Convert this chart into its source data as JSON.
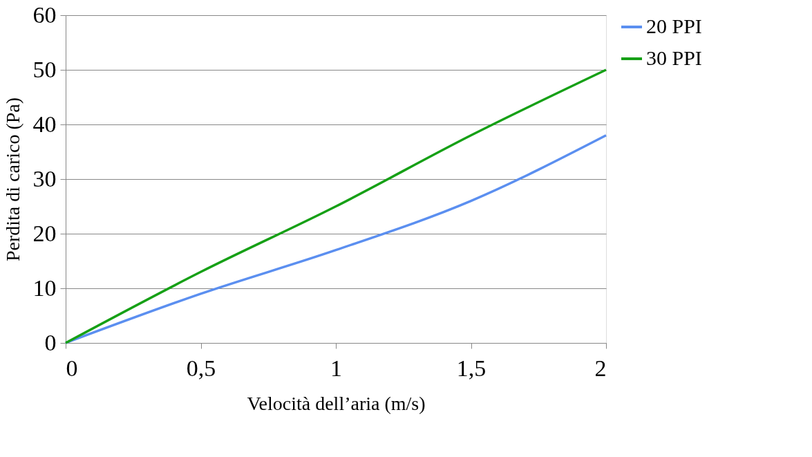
{
  "chart_data": {
    "type": "line",
    "xlabel": "Velocità dell’aria (m/s)",
    "ylabel": "Perdita di carico (Pa)",
    "x": [
      0,
      0.5,
      1,
      1.5,
      2
    ],
    "series": [
      {
        "name": "20 PPI",
        "color": "#5b8ff0",
        "values": [
          0,
          9,
          17,
          26,
          38
        ]
      },
      {
        "name": "30 PPI",
        "color": "#16a016",
        "values": [
          0,
          13,
          25,
          38,
          50
        ]
      }
    ],
    "xlim": [
      0,
      2
    ],
    "xticks": [
      0,
      {
        "value": 0.5,
        "label": "0,5"
      },
      1,
      {
        "value": 1.5,
        "label": "1,5"
      },
      2
    ],
    "ylim": [
      0,
      60
    ],
    "yticks": [
      0,
      10,
      20,
      30,
      40,
      50,
      60
    ],
    "grid": "y",
    "legend": "right",
    "line_style": "solid"
  }
}
